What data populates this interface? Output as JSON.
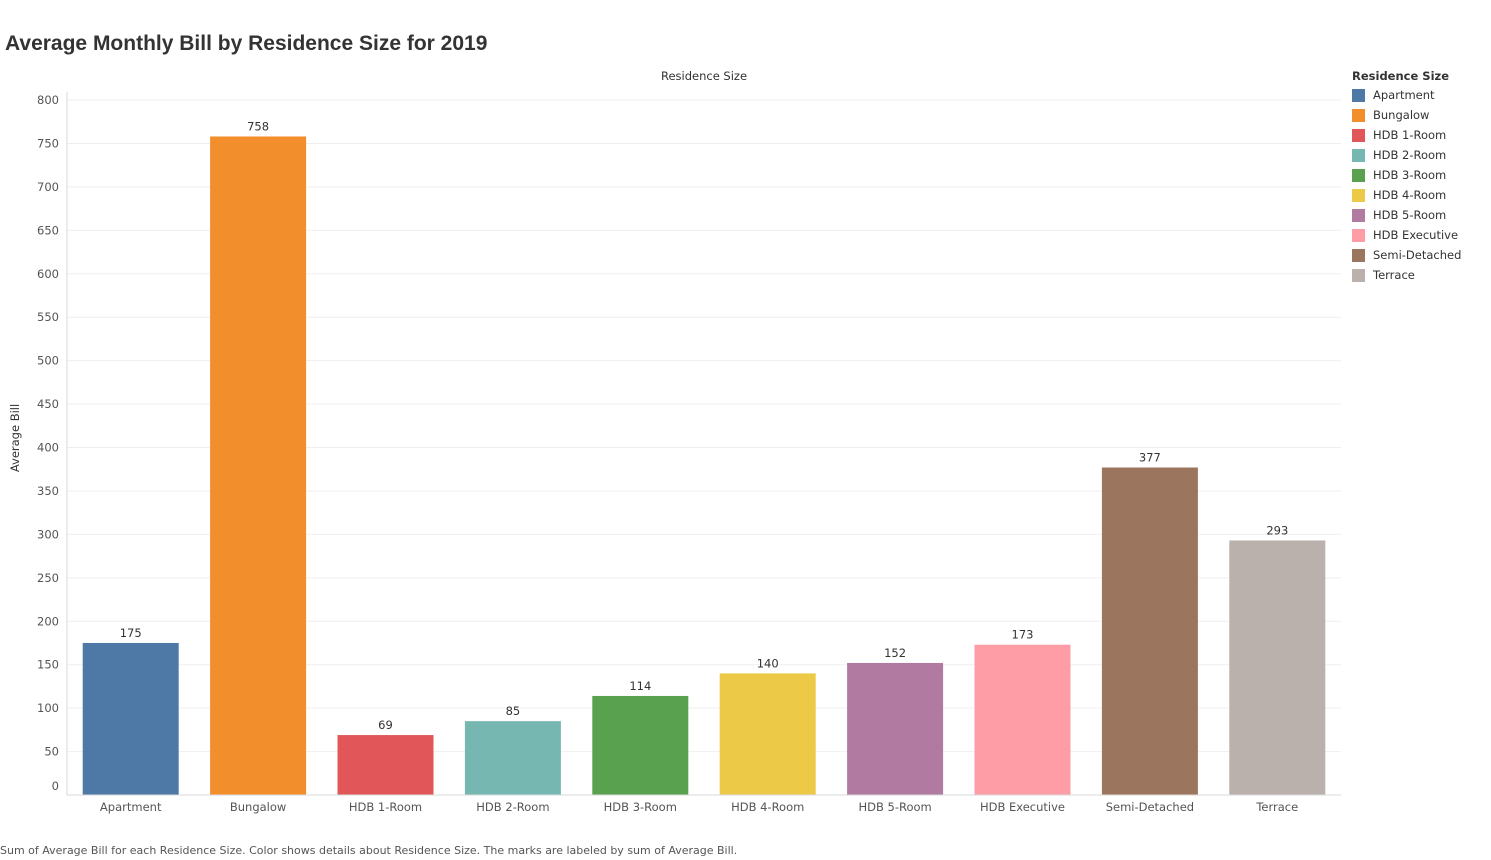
{
  "title": "Average Monthly Bill by Residence Size for 2019",
  "footer": "Sum of Average Bill for each Residence Size.  Color shows details about Residence Size.  The marks are labeled by sum of Average Bill.",
  "legend": {
    "title": "Residence Size",
    "items": [
      {
        "label": "Apartment",
        "color": "#4e79a7"
      },
      {
        "label": "Bungalow",
        "color": "#f28e2b"
      },
      {
        "label": "HDB 1-Room",
        "color": "#e15759"
      },
      {
        "label": "HDB 2-Room",
        "color": "#76b7b2"
      },
      {
        "label": "HDB 3-Room",
        "color": "#59a14f"
      },
      {
        "label": "HDB 4-Room",
        "color": "#edc948"
      },
      {
        "label": "HDB 5-Room",
        "color": "#b07aa1"
      },
      {
        "label": "HDB Executive",
        "color": "#ff9da7"
      },
      {
        "label": "Semi-Detached",
        "color": "#9c755f"
      },
      {
        "label": "Terrace",
        "color": "#bab0ac"
      }
    ]
  },
  "chart_data": {
    "type": "bar",
    "title": "Average Monthly Bill by Residence Size for 2019",
    "column_header": "Residence Size",
    "xlabel": "",
    "ylabel": "Average Bill",
    "ylim": [
      0,
      800
    ],
    "yticks": [
      0,
      50,
      100,
      150,
      200,
      250,
      300,
      350,
      400,
      450,
      500,
      550,
      600,
      650,
      700,
      750,
      800
    ],
    "grid": true,
    "legend_position": "right",
    "categories": [
      "Apartment",
      "Bungalow",
      "HDB 1-Room",
      "HDB 2-Room",
      "HDB 3-Room",
      "HDB 4-Room",
      "HDB 5-Room",
      "HDB Executive",
      "Semi-Detached",
      "Terrace"
    ],
    "values": [
      175,
      758,
      69,
      85,
      114,
      140,
      152,
      173,
      377,
      293
    ],
    "colors": [
      "#4e79a7",
      "#f28e2b",
      "#e15759",
      "#76b7b2",
      "#59a14f",
      "#edc948",
      "#b07aa1",
      "#ff9da7",
      "#9c755f",
      "#bab0ac"
    ]
  }
}
